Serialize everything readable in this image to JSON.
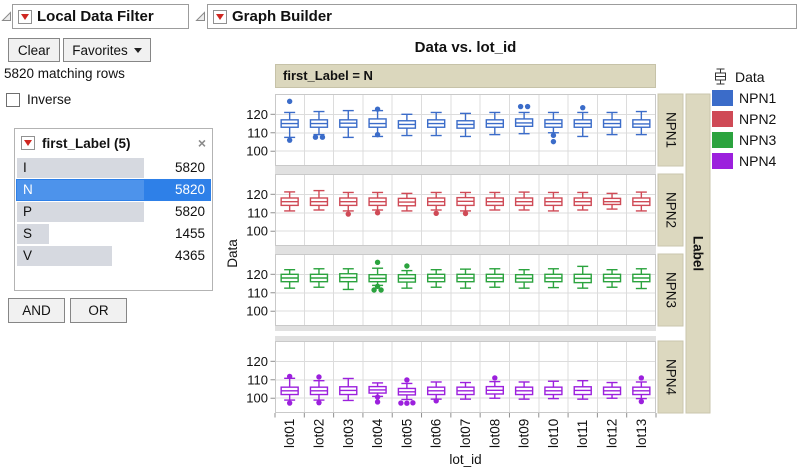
{
  "icons": {
    "close": "×"
  },
  "filter_panel": {
    "title": "Local Data Filter",
    "buttons": {
      "clear": "Clear",
      "favorites": "Favorites",
      "and": "AND",
      "or": "OR"
    },
    "matching_rows": "5820 matching rows",
    "inverse_label": "Inverse",
    "group": {
      "title": "first_Label (5)",
      "rows": [
        {
          "label": "I",
          "count": "5820",
          "frac": 1.0,
          "selected": false
        },
        {
          "label": "N",
          "count": "5820",
          "frac": 1.0,
          "selected": true
        },
        {
          "label": "P",
          "count": "5820",
          "frac": 1.0,
          "selected": false
        },
        {
          "label": "S",
          "count": "1455",
          "frac": 0.25,
          "selected": false
        },
        {
          "label": "V",
          "count": "4365",
          "frac": 0.75,
          "selected": false
        }
      ]
    }
  },
  "graph_builder": {
    "title": "Graph Builder"
  },
  "chart_data": {
    "type": "boxplot",
    "title": "Data vs. lot_id",
    "facet_band_label": "first_Label = N",
    "xlabel": "lot_id",
    "ylabel": "Data",
    "row_facet_label": "Label",
    "categories": [
      "lot01",
      "lot02",
      "lot03",
      "lot04",
      "lot05",
      "lot06",
      "lot07",
      "lot08",
      "lot09",
      "lot10",
      "lot11",
      "lot12",
      "lot13"
    ],
    "yticks": [
      100,
      110,
      120
    ],
    "ylim": [
      92,
      131
    ],
    "grid": true,
    "legend": {
      "glyph_label": "Data",
      "items": [
        "NPN1",
        "NPN2",
        "NPN3",
        "NPN4"
      ],
      "position": "right"
    },
    "panels": [
      {
        "name": "NPN1",
        "color": "#3b6cc9",
        "boxes": [
          {
            "lo": 107.5,
            "q1": 113,
            "m": 115,
            "q3": 117,
            "hi": 121,
            "out": [
              [
                127,
                0
              ],
              [
                106,
                0
              ]
            ]
          },
          {
            "lo": 109,
            "q1": 113,
            "m": 115,
            "q3": 117,
            "hi": 121.5,
            "out": [
              [
                107.6,
                -3.5
              ],
              [
                107.6,
                3.5
              ]
            ]
          },
          {
            "lo": 107.5,
            "q1": 113,
            "m": 115.2,
            "q3": 117,
            "hi": 122,
            "out": []
          },
          {
            "lo": 108,
            "q1": 113,
            "m": 115,
            "q3": 117.5,
            "hi": 122,
            "out": [
              [
                122.8,
                0
              ],
              [
                109,
                0
              ]
            ]
          },
          {
            "lo": 108.5,
            "q1": 112.5,
            "m": 114.5,
            "q3": 116.5,
            "hi": 120,
            "out": []
          },
          {
            "lo": 108.5,
            "q1": 113,
            "m": 115,
            "q3": 117,
            "hi": 121,
            "out": []
          },
          {
            "lo": 108,
            "q1": 112.5,
            "m": 114.5,
            "q3": 116.5,
            "hi": 120.5,
            "out": []
          },
          {
            "lo": 109,
            "q1": 113,
            "m": 115,
            "q3": 117,
            "hi": 121,
            "out": []
          },
          {
            "lo": 109.5,
            "q1": 113.5,
            "m": 115.3,
            "q3": 117.5,
            "hi": 121,
            "out": [
              [
                124.2,
                -3.5
              ],
              [
                124.2,
                3.5
              ]
            ]
          },
          {
            "lo": 110,
            "q1": 113,
            "m": 115,
            "q3": 117,
            "hi": 121,
            "out": [
              [
                108.6,
                0
              ],
              [
                105.2,
                0
              ]
            ]
          },
          {
            "lo": 108,
            "q1": 113,
            "m": 115,
            "q3": 117,
            "hi": 121,
            "out": [
              [
                123.6,
                0
              ]
            ]
          },
          {
            "lo": 109,
            "q1": 113,
            "m": 115,
            "q3": 117,
            "hi": 121,
            "out": []
          },
          {
            "lo": 109,
            "q1": 113,
            "m": 114.8,
            "q3": 117,
            "hi": 121.5,
            "out": []
          }
        ]
      },
      {
        "name": "NPN2",
        "color": "#cf4a56",
        "boxes": [
          {
            "lo": 111,
            "q1": 114,
            "m": 116,
            "q3": 118,
            "hi": 121.3,
            "out": []
          },
          {
            "lo": 111.5,
            "q1": 114,
            "m": 116,
            "q3": 118,
            "hi": 122,
            "out": []
          },
          {
            "lo": 111,
            "q1": 114,
            "m": 116,
            "q3": 118,
            "hi": 121,
            "out": [
              [
                109.3,
                0
              ]
            ]
          },
          {
            "lo": 111.5,
            "q1": 114,
            "m": 116,
            "q3": 118,
            "hi": 121,
            "out": [
              [
                110,
                0
              ]
            ]
          },
          {
            "lo": 111,
            "q1": 113.8,
            "m": 115.8,
            "q3": 117.8,
            "hi": 120.5,
            "out": []
          },
          {
            "lo": 111.5,
            "q1": 114,
            "m": 116,
            "q3": 118,
            "hi": 121,
            "out": [
              [
                109.7,
                0
              ]
            ]
          },
          {
            "lo": 111,
            "q1": 114,
            "m": 116.2,
            "q3": 118.2,
            "hi": 121,
            "out": [
              [
                109.6,
                0
              ]
            ]
          },
          {
            "lo": 111.5,
            "q1": 114,
            "m": 116,
            "q3": 118,
            "hi": 121,
            "out": []
          },
          {
            "lo": 111.5,
            "q1": 114,
            "m": 116,
            "q3": 118,
            "hi": 121.2,
            "out": []
          },
          {
            "lo": 111,
            "q1": 114,
            "m": 116,
            "q3": 118,
            "hi": 121,
            "out": []
          },
          {
            "lo": 111.5,
            "q1": 114,
            "m": 116,
            "q3": 118,
            "hi": 121,
            "out": []
          },
          {
            "lo": 112,
            "q1": 114.5,
            "m": 116,
            "q3": 117.8,
            "hi": 120.5,
            "out": []
          },
          {
            "lo": 111,
            "q1": 114,
            "m": 116,
            "q3": 118,
            "hi": 121.2,
            "out": []
          }
        ]
      },
      {
        "name": "NPN3",
        "color": "#2ba33e",
        "boxes": [
          {
            "lo": 112.5,
            "q1": 116,
            "m": 118,
            "q3": 120,
            "hi": 122.5,
            "out": []
          },
          {
            "lo": 113,
            "q1": 116,
            "m": 118,
            "q3": 120,
            "hi": 123,
            "out": []
          },
          {
            "lo": 111.8,
            "q1": 116,
            "m": 118.2,
            "q3": 120.3,
            "hi": 123,
            "out": []
          },
          {
            "lo": 114,
            "q1": 116,
            "m": 117.8,
            "q3": 119.8,
            "hi": 123.3,
            "out": [
              [
                126.5,
                0
              ],
              [
                113.5,
                0
              ],
              [
                111.5,
                -3.5
              ],
              [
                111.5,
                3.5
              ]
            ]
          },
          {
            "lo": 112.5,
            "q1": 115.8,
            "m": 117.8,
            "q3": 119.8,
            "hi": 122,
            "out": [
              [
                124.5,
                0
              ]
            ]
          },
          {
            "lo": 113,
            "q1": 116,
            "m": 118,
            "q3": 120,
            "hi": 122.5,
            "out": []
          },
          {
            "lo": 112.5,
            "q1": 116,
            "m": 118,
            "q3": 120,
            "hi": 122.8,
            "out": []
          },
          {
            "lo": 113,
            "q1": 116,
            "m": 118,
            "q3": 120,
            "hi": 123,
            "out": []
          },
          {
            "lo": 112.5,
            "q1": 115.8,
            "m": 117.8,
            "q3": 119.8,
            "hi": 122.5,
            "out": []
          },
          {
            "lo": 112.8,
            "q1": 116,
            "m": 118,
            "q3": 120,
            "hi": 123,
            "out": []
          },
          {
            "lo": 112.5,
            "q1": 115.5,
            "m": 117.8,
            "q3": 120,
            "hi": 124.3,
            "out": []
          },
          {
            "lo": 113,
            "q1": 116,
            "m": 118,
            "q3": 120,
            "hi": 122.5,
            "out": []
          },
          {
            "lo": 112.3,
            "q1": 116,
            "m": 118,
            "q3": 120,
            "hi": 123,
            "out": []
          }
        ]
      },
      {
        "name": "NPN4",
        "color": "#9c20dd",
        "boxes": [
          {
            "lo": 99,
            "q1": 102,
            "m": 104,
            "q3": 106,
            "hi": 110.8,
            "out": [
              [
                111.8,
                0
              ],
              [
                97.4,
                0
              ]
            ]
          },
          {
            "lo": 99,
            "q1": 102,
            "m": 104,
            "q3": 106,
            "hi": 109.5,
            "out": [
              [
                111.5,
                0
              ],
              [
                97.6,
                0
              ]
            ]
          },
          {
            "lo": 98.8,
            "q1": 102,
            "m": 104.2,
            "q3": 106.2,
            "hi": 110.7,
            "out": []
          },
          {
            "lo": 101,
            "q1": 102.8,
            "m": 104.5,
            "q3": 106.3,
            "hi": 108.3,
            "out": [
              [
                100.6,
                0
              ],
              [
                98,
                0
              ]
            ]
          },
          {
            "lo": 99.3,
            "q1": 101.8,
            "m": 103.5,
            "q3": 105.3,
            "hi": 108,
            "out": [
              [
                109.9,
                0
              ],
              [
                97.4,
                -6
              ],
              [
                97.3,
                0
              ],
              [
                97.5,
                6
              ]
            ]
          },
          {
            "lo": 99.5,
            "q1": 102,
            "m": 104,
            "q3": 106,
            "hi": 108.8,
            "out": [
              [
                98.6,
                0
              ]
            ]
          },
          {
            "lo": 99.5,
            "q1": 102,
            "m": 104,
            "q3": 106,
            "hi": 108.5,
            "out": []
          },
          {
            "lo": 100,
            "q1": 102.3,
            "m": 104.3,
            "q3": 106.3,
            "hi": 109,
            "out": [
              [
                111,
                0
              ]
            ]
          },
          {
            "lo": 99.5,
            "q1": 102,
            "m": 104,
            "q3": 106,
            "hi": 108.8,
            "out": []
          },
          {
            "lo": 99.8,
            "q1": 102,
            "m": 104,
            "q3": 106,
            "hi": 109.2,
            "out": []
          },
          {
            "lo": 99.5,
            "q1": 102,
            "m": 104.2,
            "q3": 106.2,
            "hi": 109.5,
            "out": []
          },
          {
            "lo": 100,
            "q1": 102,
            "m": 104,
            "q3": 106,
            "hi": 108.5,
            "out": []
          },
          {
            "lo": 99.8,
            "q1": 102,
            "m": 104,
            "q3": 106,
            "hi": 108.8,
            "out": [
              [
                111,
                0
              ],
              [
                98.2,
                0
              ]
            ]
          }
        ]
      }
    ]
  }
}
